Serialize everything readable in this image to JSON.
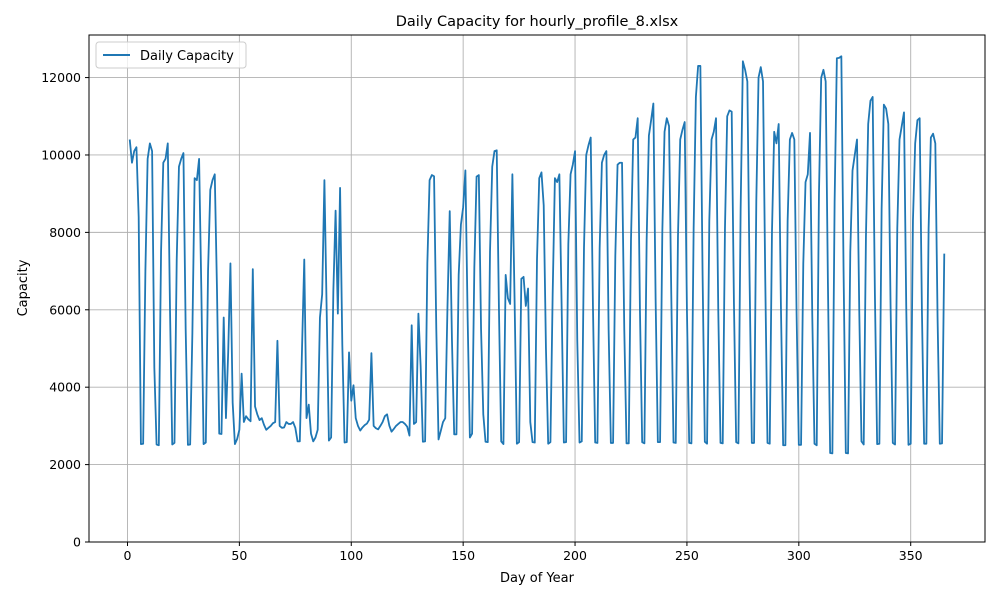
{
  "chart_data": {
    "type": "line",
    "title": "Daily Capacity for hourly_profile_8.xlsx",
    "xlabel": "Day of Year",
    "ylabel": "Capacity",
    "xlim": [
      -17.2,
      383.2
    ],
    "ylim": [
      0,
      13100
    ],
    "xticks": [
      0,
      50,
      100,
      150,
      200,
      250,
      300,
      350
    ],
    "yticks": [
      0,
      2000,
      4000,
      6000,
      8000,
      10000,
      12000
    ],
    "grid": true,
    "legend_position": "top-left",
    "colors": {
      "line": "#1f77b4",
      "grid": "#b0b0b0"
    },
    "series": [
      {
        "name": "Daily Capacity",
        "x": [
          1,
          2,
          3,
          4,
          5,
          6,
          7,
          8,
          9,
          10,
          11,
          12,
          13,
          14,
          15,
          16,
          17,
          18,
          19,
          20,
          21,
          22,
          23,
          24,
          25,
          26,
          27,
          28,
          29,
          30,
          31,
          32,
          33,
          34,
          35,
          36,
          37,
          38,
          39,
          40,
          41,
          42,
          43,
          44,
          45,
          46,
          47,
          48,
          49,
          50,
          51,
          52,
          53,
          54,
          55,
          56,
          57,
          58,
          59,
          60,
          61,
          62,
          63,
          64,
          65,
          66,
          67,
          68,
          69,
          70,
          71,
          72,
          73,
          74,
          75,
          76,
          77,
          78,
          79,
          80,
          81,
          82,
          83,
          84,
          85,
          86,
          87,
          88,
          89,
          90,
          91,
          92,
          93,
          94,
          95,
          96,
          97,
          98,
          99,
          100,
          101,
          102,
          103,
          104,
          105,
          106,
          107,
          108,
          109,
          110,
          111,
          112,
          113,
          114,
          115,
          116,
          117,
          118,
          119,
          120,
          121,
          122,
          123,
          124,
          125,
          126,
          127,
          128,
          129,
          130,
          131,
          132,
          133,
          134,
          135,
          136,
          137,
          138,
          139,
          140,
          141,
          142,
          143,
          144,
          145,
          146,
          147,
          148,
          149,
          150,
          151,
          152,
          153,
          154,
          155,
          156,
          157,
          158,
          159,
          160,
          161,
          162,
          163,
          164,
          165,
          166,
          167,
          168,
          169,
          170,
          171,
          172,
          173,
          174,
          175,
          176,
          177,
          178,
          179,
          180,
          181,
          182,
          183,
          184,
          185,
          186,
          187,
          188,
          189,
          190,
          191,
          192,
          193,
          194,
          195,
          196,
          197,
          198,
          199,
          200,
          201,
          202,
          203,
          204,
          205,
          206,
          207,
          208,
          209,
          210,
          211,
          212,
          213,
          214,
          215,
          216,
          217,
          218,
          219,
          220,
          221,
          222,
          223,
          224,
          225,
          226,
          227,
          228,
          229,
          230,
          231,
          232,
          233,
          234,
          235,
          236,
          237,
          238,
          239,
          240,
          241,
          242,
          243,
          244,
          245,
          246,
          247,
          248,
          249,
          250,
          251,
          252,
          253,
          254,
          255,
          256,
          257,
          258,
          259,
          260,
          261,
          262,
          263,
          264,
          265,
          266,
          267,
          268,
          269,
          270,
          271,
          272,
          273,
          274,
          275,
          276,
          277,
          278,
          279,
          280,
          281,
          282,
          283,
          284,
          285,
          286,
          287,
          288,
          289,
          290,
          291,
          292,
          293,
          294,
          295,
          296,
          297,
          298,
          299,
          300,
          301,
          302,
          303,
          304,
          305,
          306,
          307,
          308,
          309,
          310,
          311,
          312,
          313,
          314,
          315,
          316,
          317,
          318,
          319,
          320,
          321,
          322,
          323,
          324,
          325,
          326,
          327,
          328,
          329,
          330,
          331,
          332,
          333,
          334,
          335,
          336,
          337,
          338,
          339,
          340,
          341,
          342,
          343,
          344,
          345,
          346,
          347,
          348,
          349,
          350,
          351,
          352,
          353,
          354,
          355,
          356,
          357,
          358,
          359,
          360,
          361,
          362,
          363,
          364,
          365
        ],
        "values": [
          10400,
          9800,
          10100,
          10200,
          8400,
          2530,
          2540,
          7000,
          9900,
          10300,
          10100,
          4500,
          2520,
          2500,
          7500,
          9800,
          9900,
          10300,
          6000,
          2520,
          2560,
          7300,
          9700,
          9900,
          10050,
          5500,
          2510,
          2520,
          5400,
          9400,
          9350,
          9900,
          6500,
          2530,
          2570,
          7000,
          9100,
          9350,
          9500,
          6500,
          2800,
          2790,
          5800,
          3200,
          4900,
          7200,
          3600,
          2530,
          2660,
          2900,
          4350,
          3100,
          3250,
          3170,
          3120,
          7050,
          3500,
          3300,
          3150,
          3200,
          3030,
          2900,
          2950,
          3000,
          3070,
          3100,
          5200,
          3000,
          2950,
          2960,
          3100,
          3050,
          3050,
          3100,
          2950,
          2600,
          2600,
          5000,
          7300,
          3200,
          3550,
          2800,
          2600,
          2700,
          2900,
          5800,
          6400,
          9350,
          6000,
          2620,
          2700,
          6500,
          8560,
          5900,
          9150,
          5100,
          2570,
          2580,
          4900,
          3650,
          4050,
          3200,
          3000,
          2880,
          2960,
          3020,
          3060,
          3160,
          4880,
          3000,
          2940,
          2910,
          3000,
          3100,
          3250,
          3300,
          3010,
          2850,
          2920,
          3000,
          3050,
          3100,
          3100,
          3050,
          2980,
          2750,
          5600,
          3050,
          3100,
          5900,
          4550,
          2590,
          2600,
          7200,
          9350,
          9480,
          9450,
          5500,
          2650,
          2870,
          3100,
          3200,
          6100,
          8550,
          5200,
          2780,
          2780,
          6900,
          8200,
          8650,
          9600,
          5800,
          2700,
          2800,
          7100,
          9440,
          9480,
          5500,
          3300,
          2590,
          2580,
          7500,
          9700,
          10100,
          10120,
          6000,
          2600,
          2530,
          6900,
          6300,
          6150,
          9500,
          6200,
          2540,
          2580,
          6800,
          6850,
          6100,
          6550,
          3100,
          2580,
          2570,
          7300,
          9400,
          9550,
          8700,
          5000,
          2540,
          2580,
          6400,
          9400,
          9300,
          9500,
          6100,
          2570,
          2580,
          7700,
          9500,
          9750,
          10100,
          5200,
          2570,
          2600,
          7600,
          10000,
          10250,
          10450,
          6100,
          2570,
          2560,
          7600,
          9800,
          10000,
          10100,
          5500,
          2560,
          2560,
          7400,
          9750,
          9800,
          9800,
          5500,
          2550,
          2550,
          7800,
          10400,
          10450,
          10950,
          6000,
          2580,
          2550,
          7800,
          10500,
          10900,
          11330,
          6300,
          2580,
          2580,
          8000,
          10600,
          10950,
          10750,
          6400,
          2570,
          2560,
          7900,
          10400,
          10650,
          10850,
          6000,
          2560,
          2550,
          8100,
          11500,
          12300,
          12300,
          6900,
          2590,
          2540,
          8300,
          10400,
          10600,
          10950,
          6000,
          2560,
          2550,
          8100,
          11000,
          11150,
          11120,
          6200,
          2580,
          2550,
          8600,
          12420,
          12200,
          11900,
          6800,
          2560,
          2560,
          8800,
          12000,
          12270,
          11900,
          6800,
          2560,
          2540,
          8000,
          10600,
          10300,
          10800,
          6100,
          2500,
          2500,
          8300,
          10400,
          10570,
          10400,
          5900,
          2510,
          2510,
          7200,
          9300,
          9500,
          10570,
          5900,
          2540,
          2500,
          9000,
          12000,
          12200,
          11900,
          6700,
          2300,
          2290,
          8800,
          12500,
          12510,
          12550,
          7000,
          2300,
          2290,
          7500,
          9600,
          10000,
          10400,
          6000,
          2600,
          2520,
          7900,
          10800,
          11400,
          11500,
          6400,
          2530,
          2540,
          8600,
          11300,
          11200,
          10800,
          6100,
          2560,
          2520,
          8100,
          10400,
          10750,
          11100,
          6100,
          2510,
          2540,
          8300,
          10300,
          10900,
          10950,
          6000,
          2540,
          2540,
          8100,
          10450,
          10550,
          10300,
          5800,
          2540,
          2550,
          7450
        ]
      }
    ]
  }
}
